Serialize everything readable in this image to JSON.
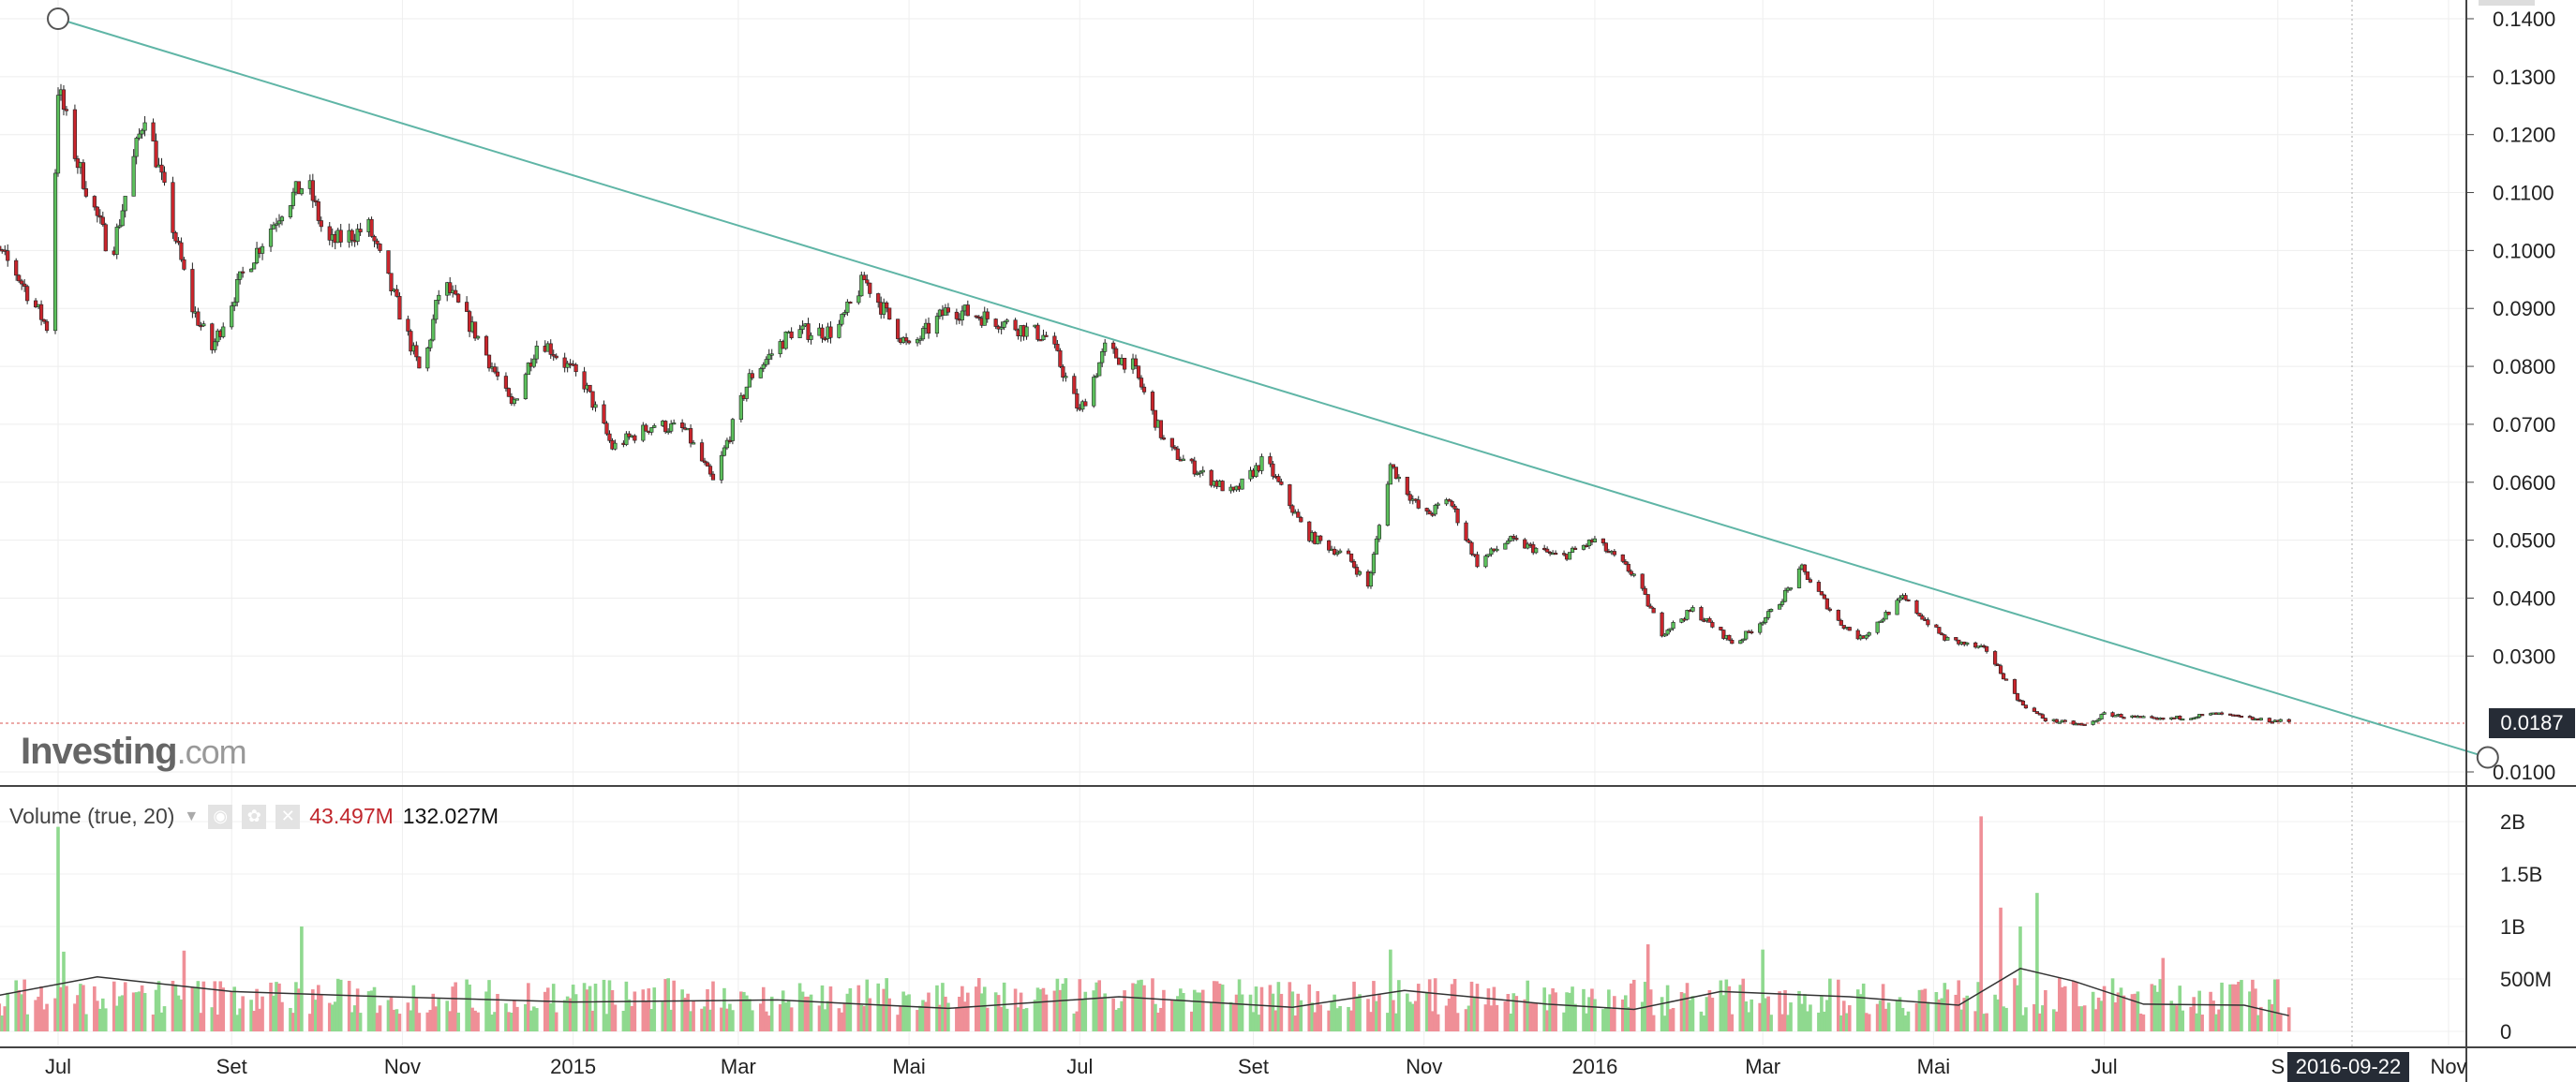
{
  "brand": {
    "name": "Investing",
    "suffix": ".com"
  },
  "volume_legend": {
    "label": "Volume (true, 20)",
    "value_1": "43.497M",
    "value_2": "132.027M",
    "icons": [
      "eye-icon",
      "gear-icon",
      "close-icon"
    ]
  },
  "last_price_label": "0.0187",
  "crosshair_date_label": "2016-09-22",
  "colors": {
    "up": "#5cc05c",
    "down": "#c9252c",
    "trendline": "#5fb5a6",
    "volume_up": "#8fd98f",
    "volume_down": "#ef8f97"
  },
  "chart_data": [
    {
      "type": "candlestick",
      "y_ticks": [
        "0.1400",
        "0.1300",
        "0.1200",
        "0.1100",
        "0.1000",
        "0.0900",
        "0.0800",
        "0.0700",
        "0.0600",
        "0.0500",
        "0.0400",
        "0.0300",
        "0.0100"
      ],
      "ylim": [
        0.0064,
        0.1433
      ],
      "x_ticks": [
        "Jul",
        "Set",
        "Nov",
        "2015",
        "Mar",
        "Mai",
        "Jul",
        "Set",
        "Nov",
        "2016",
        "Mar",
        "Mai",
        "Jul",
        "S",
        "Nov"
      ],
      "close_path": [
        [
          "2014-06-01",
          0.104
        ],
        [
          "2014-06-15",
          0.097
        ],
        [
          "2014-06-28",
          0.086
        ],
        [
          "2014-07-01",
          0.128
        ],
        [
          "2014-07-08",
          0.115
        ],
        [
          "2014-07-20",
          0.099
        ],
        [
          "2014-08-01",
          0.124
        ],
        [
          "2014-08-08",
          0.11
        ],
        [
          "2014-08-18",
          0.09
        ],
        [
          "2014-08-25",
          0.083
        ],
        [
          "2014-09-05",
          0.096
        ],
        [
          "2014-09-20",
          0.108
        ],
        [
          "2014-09-28",
          0.112
        ],
        [
          "2014-10-05",
          0.101
        ],
        [
          "2014-10-20",
          0.104
        ],
        [
          "2014-11-01",
          0.088
        ],
        [
          "2014-11-08",
          0.078
        ],
        [
          "2014-11-15",
          0.095
        ],
        [
          "2014-11-28",
          0.085
        ],
        [
          "2014-12-10",
          0.073
        ],
        [
          "2014-12-20",
          0.085
        ],
        [
          "2015-01-05",
          0.077
        ],
        [
          "2015-01-15",
          0.066
        ],
        [
          "2015-01-30",
          0.07
        ],
        [
          "2015-02-10",
          0.069
        ],
        [
          "2015-02-20",
          0.06
        ],
        [
          "2015-03-05",
          0.078
        ],
        [
          "2015-03-20",
          0.086
        ],
        [
          "2015-04-05",
          0.086
        ],
        [
          "2015-04-15",
          0.095
        ],
        [
          "2015-05-01",
          0.083
        ],
        [
          "2015-05-15",
          0.09
        ],
        [
          "2015-06-01",
          0.088
        ],
        [
          "2015-06-20",
          0.085
        ],
        [
          "2015-07-01",
          0.072
        ],
        [
          "2015-07-10",
          0.083
        ],
        [
          "2015-07-20",
          0.08
        ],
        [
          "2015-08-01",
          0.066
        ],
        [
          "2015-08-15",
          0.061
        ],
        [
          "2015-08-25",
          0.058
        ],
        [
          "2015-09-05",
          0.064
        ],
        [
          "2015-09-20",
          0.051
        ],
        [
          "2015-10-05",
          0.047
        ],
        [
          "2015-10-12",
          0.042
        ],
        [
          "2015-10-20",
          0.063
        ],
        [
          "2015-11-01",
          0.054
        ],
        [
          "2015-11-10",
          0.057
        ],
        [
          "2015-11-20",
          0.046
        ],
        [
          "2015-12-01",
          0.05
        ],
        [
          "2015-12-20",
          0.047
        ],
        [
          "2016-01-01",
          0.05
        ],
        [
          "2016-01-15",
          0.044
        ],
        [
          "2016-01-25",
          0.034
        ],
        [
          "2016-02-05",
          0.038
        ],
        [
          "2016-02-20",
          0.032
        ],
        [
          "2016-03-05",
          0.038
        ],
        [
          "2016-03-15",
          0.045
        ],
        [
          "2016-03-28",
          0.036
        ],
        [
          "2016-04-05",
          0.033
        ],
        [
          "2016-04-20",
          0.04
        ],
        [
          "2016-05-05",
          0.033
        ],
        [
          "2016-05-20",
          0.031
        ],
        [
          "2016-06-01",
          0.022
        ],
        [
          "2016-06-10",
          0.019
        ],
        [
          "2016-06-25",
          0.018
        ],
        [
          "2016-07-01",
          0.02
        ],
        [
          "2016-07-20",
          0.019
        ],
        [
          "2016-08-10",
          0.02
        ],
        [
          "2016-08-25",
          0.019
        ],
        [
          "2016-09-05",
          0.0187
        ]
      ],
      "trendline": {
        "start": [
          "2014-07-01",
          0.14
        ],
        "end": [
          "2016-11-15",
          0.0125
        ]
      },
      "last_price": 0.0187
    },
    {
      "type": "bar",
      "title": "Volume (true, 20)",
      "y_ticks": [
        "2B",
        "1.5B",
        "1B",
        "500M",
        "0"
      ],
      "ylim": [
        -30000000,
        2100000000
      ],
      "spikes": [
        [
          "2014-06-28",
          330000000,
          "up"
        ],
        [
          "2014-07-01",
          1950000000,
          "up"
        ],
        [
          "2014-07-03",
          760000000,
          "up"
        ],
        [
          "2014-07-05",
          520000000,
          "down"
        ],
        [
          "2014-08-06",
          480000000,
          "up"
        ],
        [
          "2014-08-15",
          770000000,
          "down"
        ],
        [
          "2014-09-26",
          1000000000,
          "up"
        ],
        [
          "2015-03-01",
          780000000,
          "down"
        ],
        [
          "2015-10-20",
          780000000,
          "up"
        ],
        [
          "2016-01-20",
          830000000,
          "down"
        ],
        [
          "2016-03-01",
          780000000,
          "up"
        ],
        [
          "2016-05-18",
          2050000000,
          "down"
        ],
        [
          "2016-05-25",
          1180000000,
          "down"
        ],
        [
          "2016-06-01",
          1000000000,
          "up"
        ],
        [
          "2016-06-07",
          1320000000,
          "up"
        ],
        [
          "2016-07-22",
          700000000,
          "down"
        ]
      ],
      "average": [
        [
          "2014-06-01",
          300000000
        ],
        [
          "2014-07-15",
          520000000
        ],
        [
          "2014-09-01",
          380000000
        ],
        [
          "2014-10-15",
          340000000
        ],
        [
          "2015-01-01",
          280000000
        ],
        [
          "2015-03-15",
          300000000
        ],
        [
          "2015-05-15",
          220000000
        ],
        [
          "2015-07-15",
          330000000
        ],
        [
          "2015-09-15",
          230000000
        ],
        [
          "2015-10-25",
          390000000
        ],
        [
          "2015-12-15",
          260000000
        ],
        [
          "2016-01-15",
          210000000
        ],
        [
          "2016-02-15",
          380000000
        ],
        [
          "2016-04-01",
          330000000
        ],
        [
          "2016-05-10",
          250000000
        ],
        [
          "2016-06-01",
          600000000
        ],
        [
          "2016-06-20",
          480000000
        ],
        [
          "2016-07-15",
          260000000
        ],
        [
          "2016-08-20",
          250000000
        ],
        [
          "2016-09-05",
          150000000
        ]
      ]
    }
  ]
}
